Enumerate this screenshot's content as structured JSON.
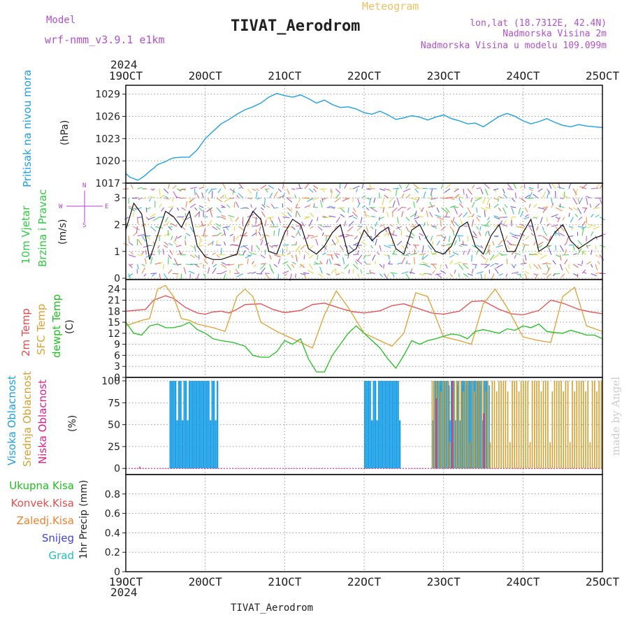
{
  "header": {
    "model_label": "Model",
    "model_name": "wrf-nmm_v3.9.1 e1km",
    "title": "TIVAT_Aerodrom",
    "meteogram_label": "Meteogram",
    "lonlat": "lon,lat (18.7312E, 42.4N)",
    "altitude": "Nadmorska Visina 2m",
    "model_altitude": "Nadmorska Visina u modelu 109.099m",
    "footer_title": "TIVAT_Aerodrom",
    "watermark": "made by Angel"
  },
  "colors": {
    "pressure": "#1ea0e6",
    "wind_label": "#2ecc40",
    "wind_dir": "#b040d0",
    "temp2m": "#e84c4c",
    "sfc": "#e0a030",
    "dewpt": "#20c020",
    "cloud_high": "#1ea0e6",
    "cloud_mid": "#d4a030",
    "cloud_low": "#e0208a",
    "rain_total": "#20c020",
    "rain_conv": "#e84c4c",
    "rain_frz": "#f08030",
    "snow": "#4040e0",
    "hail": "#20c0c0",
    "model_text": "#b050d0",
    "meteogram_text": "#f0c060"
  },
  "chart_data": {
    "type": "line",
    "time_axis": {
      "year": "2024",
      "ticks": [
        "19OCT",
        "20OCT",
        "21OCT",
        "22OCT",
        "23OCT",
        "24OCT",
        "25OCT"
      ]
    },
    "panels": [
      {
        "id": "pressure",
        "labels": [
          "Pritisak na nivou mora"
        ],
        "unit": "(hPa)",
        "yticks": [
          "1017",
          "1020",
          "1023",
          "1026",
          "1029"
        ],
        "ylim": [
          1017,
          1030.2
        ],
        "series": [
          {
            "x": [
              0,
              0.05,
              0.1,
              0.15,
              0.2,
              0.25,
              0.3,
              0.35,
              0.4,
              0.45,
              0.5,
              0.55,
              0.6,
              0.7,
              0.8,
              0.9,
              1.0,
              1.1,
              1.2,
              1.3,
              1.4,
              1.5,
              1.6,
              1.7,
              1.8,
              1.9,
              2.0,
              2.1,
              2.2,
              2.3,
              2.4,
              2.5,
              2.6,
              2.7,
              2.8,
              2.9,
              3.0,
              3.1,
              3.2,
              3.3,
              3.4,
              3.5,
              3.6,
              3.7,
              3.8,
              3.9,
              4.0,
              4.1,
              4.2,
              4.3,
              4.4,
              4.5,
              4.6,
              4.7,
              4.8,
              4.9,
              5.0,
              5.1,
              5.2,
              5.3,
              5.4,
              5.5,
              5.6,
              5.7,
              5.8,
              5.9,
              6.0
            ],
            "y": [
              1018.3,
              1017.8,
              1017.6,
              1017.4,
              1017.7,
              1018.1,
              1018.6,
              1019.0,
              1019.5,
              1019.7,
              1019.9,
              1020.2,
              1020.4,
              1020.5,
              1020.5,
              1021.5,
              1023.0,
              1024.0,
              1025.0,
              1025.6,
              1026.3,
              1026.9,
              1027.3,
              1027.8,
              1028.6,
              1029.1,
              1028.8,
              1028.6,
              1028.9,
              1028.4,
              1027.8,
              1028.2,
              1027.6,
              1027.2,
              1027.3,
              1027.0,
              1026.5,
              1026.3,
              1026.7,
              1026.2,
              1025.6,
              1025.8,
              1026.1,
              1025.9,
              1025.5,
              1025.9,
              1026.2,
              1025.7,
              1025.4,
              1025.0,
              1025.1,
              1024.6,
              1025.3,
              1026.0,
              1026.4,
              1026.0,
              1025.4,
              1025.0,
              1025.3,
              1025.7,
              1025.2,
              1024.8,
              1024.6,
              1024.9,
              1024.7,
              1024.6,
              1024.5
            ]
          }
        ]
      },
      {
        "id": "wind",
        "labels": [
          "10m Vjetar",
          "Brzina i Pravac"
        ],
        "unit": "(m/s)",
        "direction_legend": [
          "N",
          "E",
          "S",
          "W"
        ],
        "yticks": [
          "0",
          "1",
          "2",
          "3"
        ],
        "ylim": [
          -0.05,
          3.55
        ],
        "series": [
          {
            "name": "speed",
            "x": [
              0,
              0.1,
              0.2,
              0.3,
              0.4,
              0.5,
              0.6,
              0.7,
              0.8,
              0.9,
              1.0,
              1.1,
              1.2,
              1.3,
              1.4,
              1.5,
              1.6,
              1.7,
              1.8,
              1.9,
              2.0,
              2.1,
              2.2,
              2.3,
              2.4,
              2.5,
              2.6,
              2.7,
              2.8,
              2.9,
              3.0,
              3.1,
              3.2,
              3.3,
              3.4,
              3.5,
              3.6,
              3.7,
              3.8,
              3.9,
              4.0,
              4.1,
              4.2,
              4.3,
              4.4,
              4.5,
              4.6,
              4.7,
              4.8,
              4.9,
              5.0,
              5.1,
              5.2,
              5.3,
              5.4,
              5.5,
              5.6,
              5.7,
              5.8,
              5.9,
              6.0
            ],
            "y": [
              1.8,
              2.8,
              2.4,
              0.7,
              1.6,
              2.5,
              2.3,
              1.9,
              2.5,
              1.2,
              0.8,
              0.7,
              0.7,
              0.8,
              0.9,
              1.9,
              2.5,
              2.2,
              1.0,
              0.9,
              1.7,
              2.2,
              2.0,
              1.1,
              0.9,
              1.2,
              1.7,
              2.0,
              0.9,
              1.1,
              1.8,
              1.4,
              1.7,
              1.9,
              1.1,
              0.9,
              1.8,
              2.0,
              1.4,
              1.0,
              0.9,
              1.2,
              1.9,
              2.1,
              1.2,
              0.9,
              1.6,
              2.0,
              1.0,
              1.0,
              1.7,
              2.2,
              1.0,
              1.2,
              1.7,
              2.0,
              1.4,
              1.1,
              1.3,
              1.5,
              1.6
            ]
          }
        ]
      },
      {
        "id": "temperature",
        "labels": [
          "2m Temp",
          "SFC Temp",
          "dewpt Temp"
        ],
        "unit": "(C)",
        "yticks": [
          "0",
          "3",
          "6",
          "9",
          "12",
          "15",
          "18",
          "21",
          "24"
        ],
        "ylim": [
          0,
          26.6
        ],
        "series": [
          {
            "name": "2m Temp",
            "x": [
              0,
              0.25,
              0.35,
              0.5,
              0.6,
              0.75,
              0.9,
              1.0,
              1.1,
              1.2,
              1.3,
              1.4,
              1.5,
              1.7,
              1.85,
              2.0,
              2.2,
              2.35,
              2.5,
              2.7,
              2.85,
              3.0,
              3.2,
              3.35,
              3.5,
              3.7,
              3.85,
              4.0,
              4.2,
              4.35,
              4.5,
              4.7,
              4.85,
              5.0,
              5.2,
              5.35,
              5.5,
              5.7,
              5.85,
              6.0
            ],
            "y": [
              18,
              18.5,
              21,
              22.2,
              21.5,
              19,
              17.5,
              17.2,
              17.8,
              18,
              17.5,
              18.5,
              19.8,
              20,
              18.5,
              17.6,
              18.2,
              19.8,
              20.2,
              18.8,
              17.9,
              17.5,
              18.1,
              19.5,
              20,
              18.6,
              17.5,
              17.2,
              18.0,
              20.6,
              20.8,
              18.5,
              17.3,
              17.0,
              18.2,
              21.0,
              20.2,
              18.5,
              17.8,
              17.3
            ]
          },
          {
            "name": "SFC Temp",
            "x": [
              0,
              0.2,
              0.3,
              0.4,
              0.5,
              0.6,
              0.7,
              0.8,
              0.9,
              1.0,
              1.1,
              1.25,
              1.4,
              1.5,
              1.6,
              1.7,
              1.9,
              2.0,
              2.2,
              2.35,
              2.5,
              2.65,
              2.8,
              3.0,
              3.2,
              3.35,
              3.5,
              3.65,
              3.8,
              4.0,
              4.2,
              4.35,
              4.5,
              4.65,
              4.8,
              5.0,
              5.2,
              5.35,
              5.5,
              5.65,
              5.8,
              6.0
            ],
            "y": [
              14,
              15.5,
              16,
              24,
              25,
              22,
              16,
              15.5,
              14.5,
              14,
              13.5,
              12.5,
              22,
              24,
              22,
              15,
              12.5,
              11.5,
              9.5,
              8,
              17,
              23.5,
              19,
              12,
              10,
              8.5,
              12,
              23,
              22,
              11,
              10,
              9,
              20,
              24,
              19,
              11,
              10,
              9.5,
              22,
              24.5,
              14,
              12.5
            ]
          },
          {
            "name": "dewpt Temp",
            "x": [
              0,
              0.1,
              0.2,
              0.3,
              0.4,
              0.5,
              0.6,
              0.7,
              0.8,
              0.9,
              1.0,
              1.1,
              1.2,
              1.35,
              1.5,
              1.6,
              1.7,
              1.8,
              1.9,
              2.0,
              2.1,
              2.2,
              2.3,
              2.4,
              2.5,
              2.6,
              2.7,
              2.8,
              2.9,
              3.0,
              3.1,
              3.2,
              3.3,
              3.4,
              3.5,
              3.6,
              3.7,
              3.8,
              3.9,
              4.0,
              4.1,
              4.2,
              4.3,
              4.4,
              4.5,
              4.6,
              4.7,
              4.8,
              4.9,
              5.0,
              5.1,
              5.2,
              5.3,
              5.4,
              5.5,
              5.6,
              5.7,
              5.8,
              5.9,
              6.0
            ],
            "y": [
              15,
              12,
              11.5,
              14,
              14.5,
              13.5,
              13.5,
              14,
              15,
              13,
              12,
              10.5,
              10,
              9.5,
              8.5,
              6,
              5.5,
              5.5,
              7,
              10,
              9,
              10.5,
              5,
              1.5,
              1.5,
              6,
              9,
              12,
              14,
              12,
              10,
              8,
              5,
              2.5,
              6,
              10,
              9,
              10,
              10.5,
              11.2,
              11.8,
              11.5,
              10.5,
              12.5,
              13,
              12.5,
              12,
              13.2,
              12.8,
              14,
              13.5,
              14.5,
              12.5,
              12.2,
              12,
              12.8,
              12.2,
              11.5,
              11.5,
              10.5
            ]
          }
        ]
      },
      {
        "id": "cloud",
        "labels": [
          "Visoka Oblacnost",
          "Srednja Oblacnost",
          "Niska Oblacnost"
        ],
        "unit": "(%)",
        "yticks": [
          "0",
          "25",
          "50",
          "75",
          "100"
        ],
        "ylim": [
          -7,
          104
        ],
        "high_blocks": [
          [
            0.55,
            1.15
          ],
          [
            3.0,
            3.45
          ],
          [
            3.85,
            4.55
          ]
        ],
        "mid_blocks": [
          [
            3.85,
            6.0
          ]
        ],
        "low_spikes": [
          [
            0.17,
            2
          ],
          [
            3.9,
            80
          ],
          [
            4.1,
            100
          ],
          [
            4.5,
            63
          ]
        ]
      },
      {
        "id": "precip",
        "labels": [
          "Ukupna Kisa",
          "Konvek.Kisa",
          "Zaledj.Kisa",
          "Snijeg",
          "Grad"
        ],
        "unit": "1hr Precip (mm)",
        "yticks": [
          "0",
          "0.2",
          "0.4",
          "0.6",
          "0.8"
        ],
        "ylim": [
          0,
          1.0
        ],
        "series": []
      }
    ]
  }
}
